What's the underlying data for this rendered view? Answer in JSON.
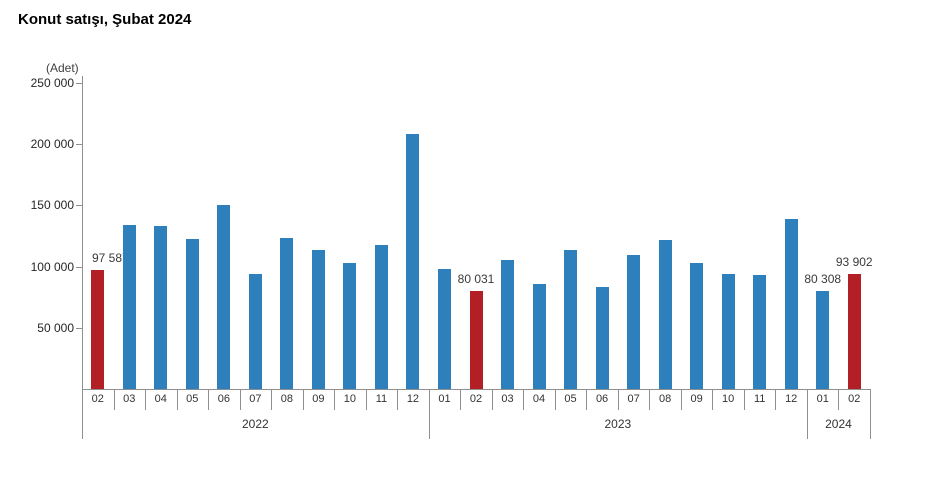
{
  "title": "Konut satışı, Şubat 2024",
  "unit_label": "(Adet)",
  "colors": {
    "bar_blue": "#2e80bd",
    "bar_red": "#b22025",
    "axis_gray": "#8f8f8f",
    "text_dark": "#333333"
  },
  "chart_data": {
    "type": "bar",
    "title": "Konut satışı, Şubat 2024",
    "ylabel": "(Adet)",
    "ylim": [
      0,
      250000
    ],
    "yticks": [
      50000,
      100000,
      150000,
      200000,
      250000
    ],
    "ytick_labels": [
      "50 000",
      "100 000",
      "150 000",
      "200 000",
      "250 000"
    ],
    "grid": false,
    "legend": "none",
    "year_groups": [
      {
        "year": "2022",
        "months": [
          "02",
          "03",
          "04",
          "05",
          "06",
          "07",
          "08",
          "09",
          "10",
          "11",
          "12"
        ]
      },
      {
        "year": "2023",
        "months": [
          "01",
          "02",
          "03",
          "04",
          "05",
          "06",
          "07",
          "08",
          "09",
          "10",
          "11",
          "12"
        ]
      },
      {
        "year": "2024",
        "months": [
          "01",
          "02"
        ]
      }
    ],
    "points": [
      {
        "year": "2022",
        "month": "02",
        "value": 97587,
        "highlighted": true,
        "label": "97 587"
      },
      {
        "year": "2022",
        "month": "03",
        "value": 134170,
        "highlighted": false,
        "label": null
      },
      {
        "year": "2022",
        "month": "04",
        "value": 133058,
        "highlighted": false,
        "label": null
      },
      {
        "year": "2022",
        "month": "05",
        "value": 122768,
        "highlighted": false,
        "label": null
      },
      {
        "year": "2022",
        "month": "06",
        "value": 150509,
        "highlighted": false,
        "label": null
      },
      {
        "year": "2022",
        "month": "07",
        "value": 93902,
        "highlighted": false,
        "label": null
      },
      {
        "year": "2022",
        "month": "08",
        "value": 123491,
        "highlighted": false,
        "label": null
      },
      {
        "year": "2022",
        "month": "09",
        "value": 113402,
        "highlighted": false,
        "label": null
      },
      {
        "year": "2022",
        "month": "10",
        "value": 102533,
        "highlighted": false,
        "label": null
      },
      {
        "year": "2022",
        "month": "11",
        "value": 117806,
        "highlighted": false,
        "label": null
      },
      {
        "year": "2022",
        "month": "12",
        "value": 207963,
        "highlighted": false,
        "label": null
      },
      {
        "year": "2023",
        "month": "01",
        "value": 97708,
        "highlighted": false,
        "label": null
      },
      {
        "year": "2023",
        "month": "02",
        "value": 80031,
        "highlighted": true,
        "label": "80 031"
      },
      {
        "year": "2023",
        "month": "03",
        "value": 105476,
        "highlighted": false,
        "label": null
      },
      {
        "year": "2023",
        "month": "04",
        "value": 85652,
        "highlighted": false,
        "label": null
      },
      {
        "year": "2023",
        "month": "05",
        "value": 113656,
        "highlighted": false,
        "label": null
      },
      {
        "year": "2023",
        "month": "06",
        "value": 83636,
        "highlighted": false,
        "label": null
      },
      {
        "year": "2023",
        "month": "07",
        "value": 109548,
        "highlighted": false,
        "label": null
      },
      {
        "year": "2023",
        "month": "08",
        "value": 122091,
        "highlighted": false,
        "label": null
      },
      {
        "year": "2023",
        "month": "09",
        "value": 102656,
        "highlighted": false,
        "label": null
      },
      {
        "year": "2023",
        "month": "10",
        "value": 93761,
        "highlighted": false,
        "label": null
      },
      {
        "year": "2023",
        "month": "11",
        "value": 93514,
        "highlighted": false,
        "label": null
      },
      {
        "year": "2023",
        "month": "12",
        "value": 138577,
        "highlighted": false,
        "label": null
      },
      {
        "year": "2024",
        "month": "01",
        "value": 80308,
        "highlighted": false,
        "label": "80 308"
      },
      {
        "year": "2024",
        "month": "02",
        "value": 93902,
        "highlighted": true,
        "label": "93 902"
      }
    ]
  }
}
